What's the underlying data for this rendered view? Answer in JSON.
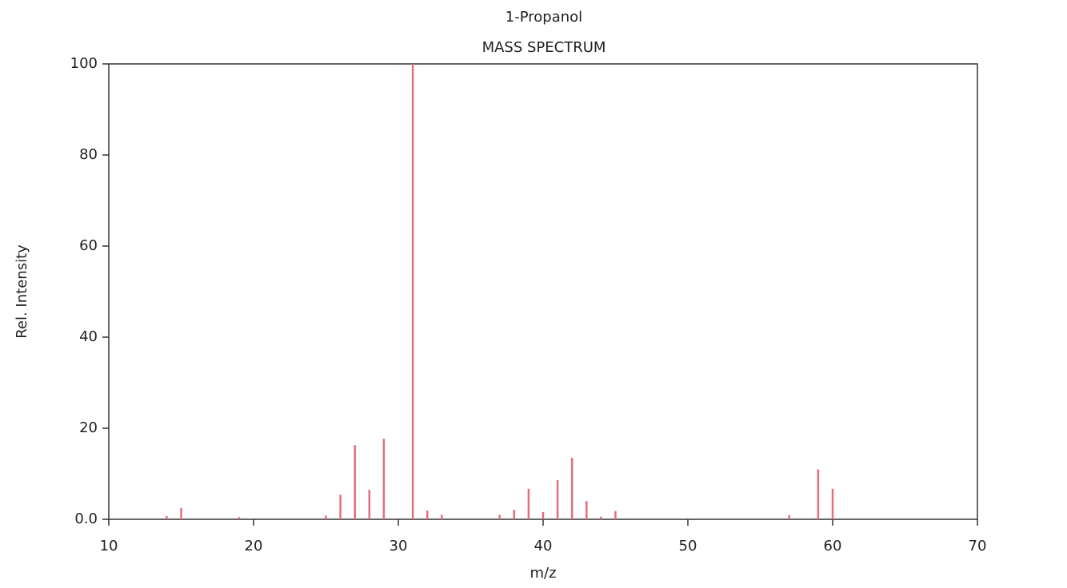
{
  "chart_data": {
    "type": "stem",
    "title": "1-Propanol",
    "subtitle": "MASS SPECTRUM",
    "x_label": "m/z",
    "y_label": "Rel. Intensity",
    "x": [
      14,
      15,
      19,
      25,
      26,
      27,
      28,
      29,
      31,
      32,
      33,
      37,
      38,
      39,
      40,
      41,
      42,
      43,
      44,
      45,
      57,
      59,
      60
    ],
    "values": [
      0.7,
      2.5,
      0.5,
      0.8,
      5.4,
      16.3,
      6.5,
      17.7,
      100,
      1.9,
      1.0,
      1.0,
      2.1,
      6.7,
      1.6,
      8.6,
      13.5,
      4.0,
      0.6,
      1.8,
      0.9,
      11.0,
      6.7
    ],
    "color": "#e0707c",
    "xlim": [
      10,
      70
    ],
    "xticks": [
      10,
      20,
      30,
      40,
      50,
      60,
      70
    ],
    "ylim": [
      0,
      100
    ],
    "yticks": [
      {
        "value": 0,
        "label": "0.0"
      },
      20,
      40,
      60,
      80,
      100
    ]
  }
}
